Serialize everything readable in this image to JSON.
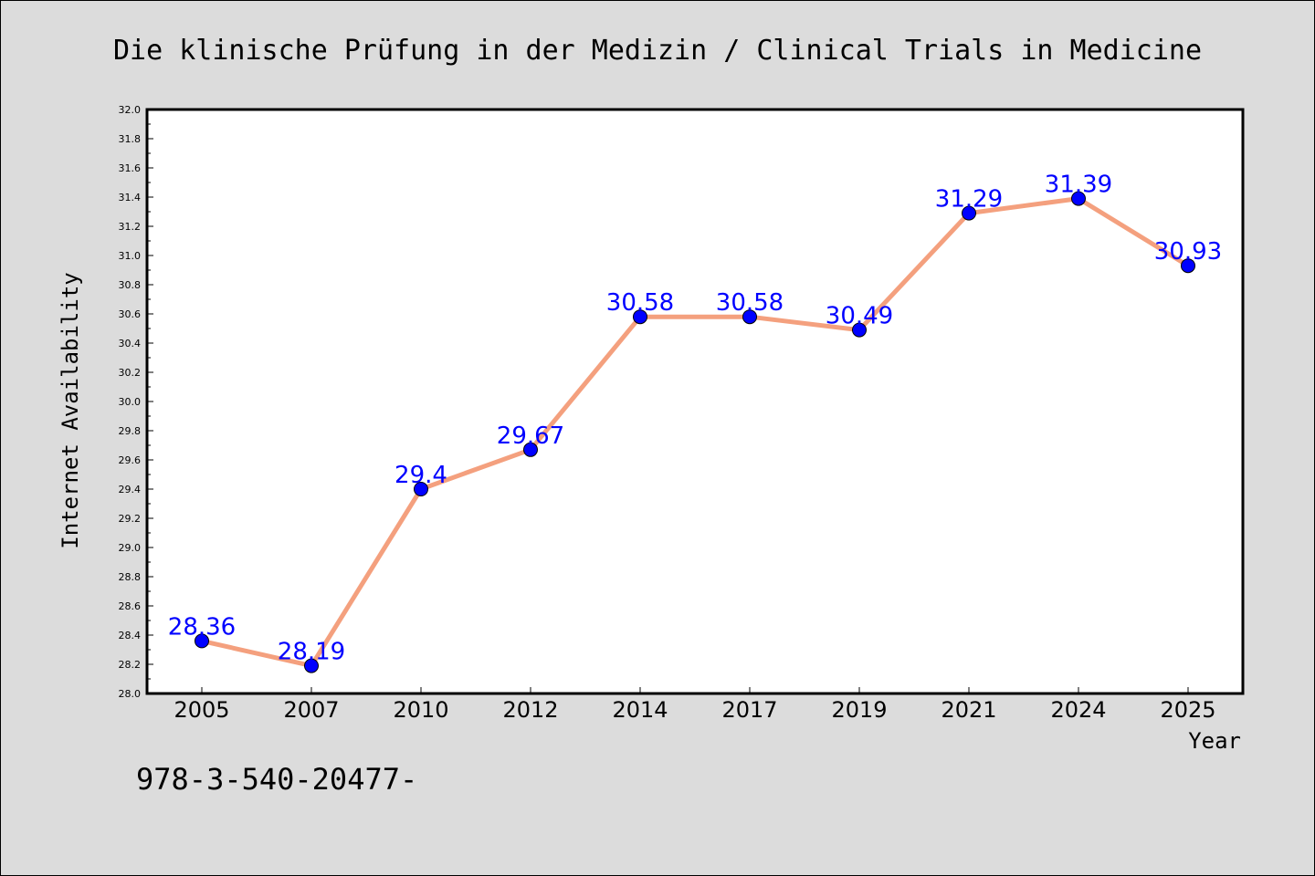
{
  "chart_data": {
    "type": "line",
    "title": "Die klinische Prüfung in der Medizin / Clinical Trials in Medicine",
    "xlabel": "Year",
    "ylabel": "Internet Availability",
    "categories": [
      "2005",
      "2007",
      "2010",
      "2012",
      "2014",
      "2017",
      "2019",
      "2021",
      "2024",
      "2025"
    ],
    "series": [
      {
        "values": [
          28.36,
          28.19,
          29.4,
          29.67,
          30.58,
          30.58,
          30.49,
          31.29,
          31.39,
          30.93
        ],
        "data_labels": [
          "28.36",
          "28.19",
          "29.4",
          "29.67",
          "30.58",
          "30.58",
          "30.49",
          "31.29",
          "31.39",
          "30.93"
        ]
      }
    ],
    "ylim": [
      28.0,
      32.0
    ],
    "yticks": [
      "28.0",
      "28.2",
      "28.4",
      "28.6",
      "28.8",
      "29.0",
      "29.2",
      "29.4",
      "29.6",
      "29.8",
      "30.0",
      "30.2",
      "30.4",
      "30.6",
      "30.8",
      "31.0",
      "31.2",
      "31.4",
      "31.6",
      "31.8",
      "32.0"
    ],
    "grid": false,
    "legend": "none",
    "colors": {
      "line": "#f4a07e",
      "marker": "#0000ff",
      "label": "#0000ff",
      "background": "#dcdcdc",
      "plot_background": "#ffffff"
    }
  },
  "footer": {
    "text": "978-3-540-20477-"
  }
}
